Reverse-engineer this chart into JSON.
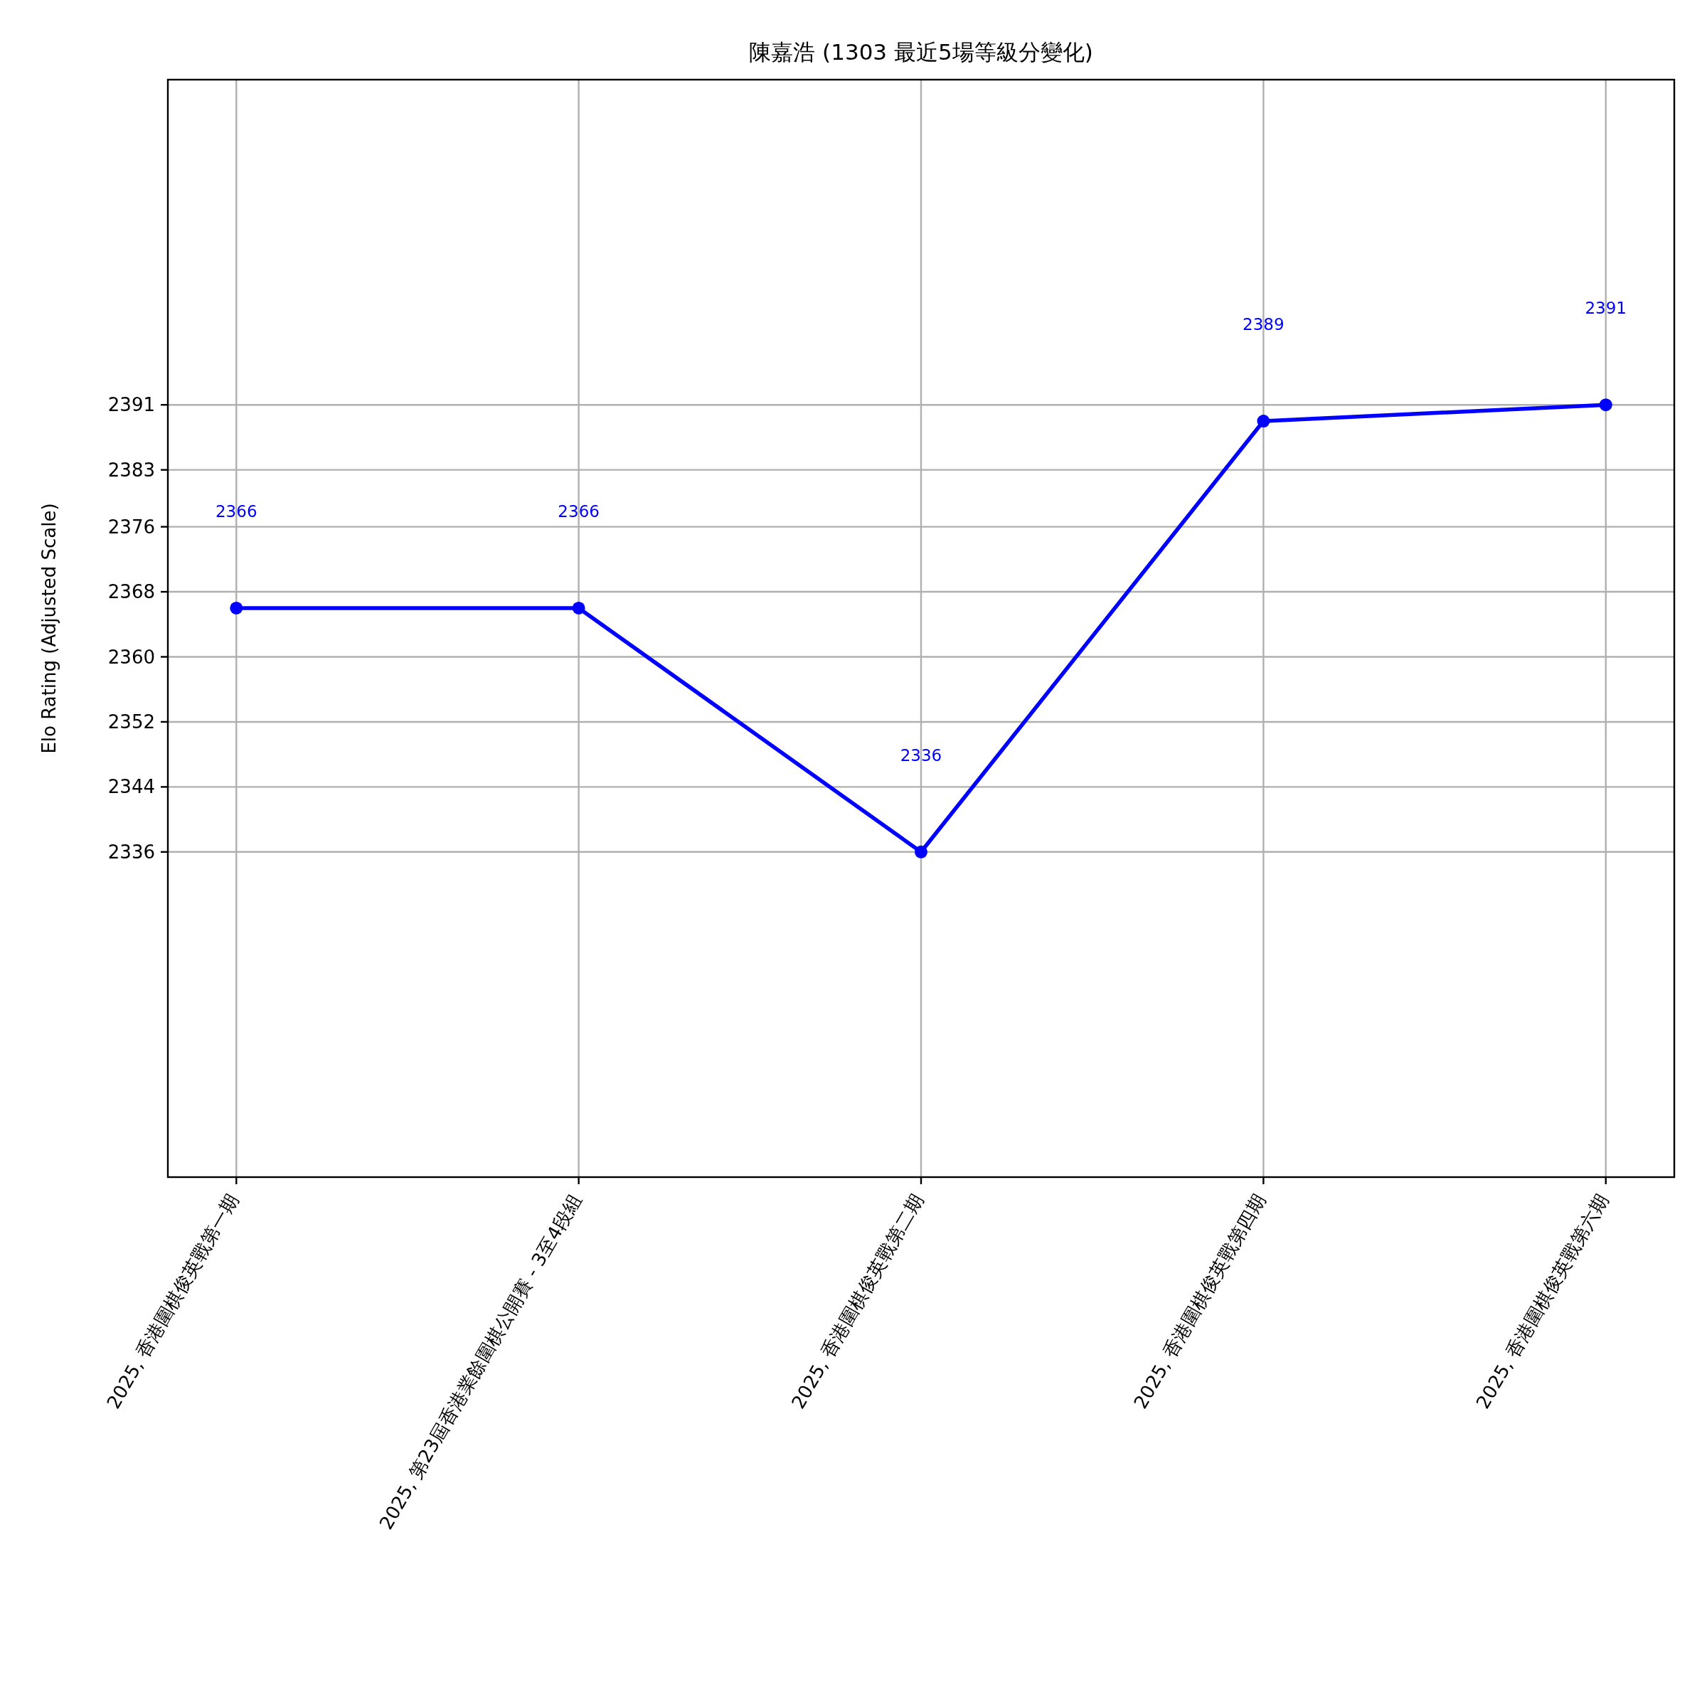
{
  "chart_data": {
    "type": "line",
    "title": "陳嘉浩 (1303 最近5場等級分變化)",
    "ylabel": "Elo Rating (Adjusted Scale)",
    "categories": [
      "2025, 香港圍棋俊英戰第一期",
      "2025, 第23屆香港業餘圍棋公開賽 - 3至4段組",
      "2025, 香港圍棋俊英戰第二期",
      "2025, 香港圍棋俊英戰第四期",
      "2025, 香港圍棋俊英戰第六期"
    ],
    "series": [
      {
        "color": "#0000ff",
        "values": [
          2366,
          2366,
          2336,
          2389,
          2391
        ]
      }
    ],
    "ylim": [
      2296,
      2431
    ],
    "yticks": [
      2336,
      2344,
      2352,
      2360,
      2368,
      2376,
      2383,
      2391
    ],
    "annotations": [
      "2366",
      "2366",
      "2336",
      "2389",
      "2391"
    ],
    "grid": true,
    "marker": "circle"
  }
}
